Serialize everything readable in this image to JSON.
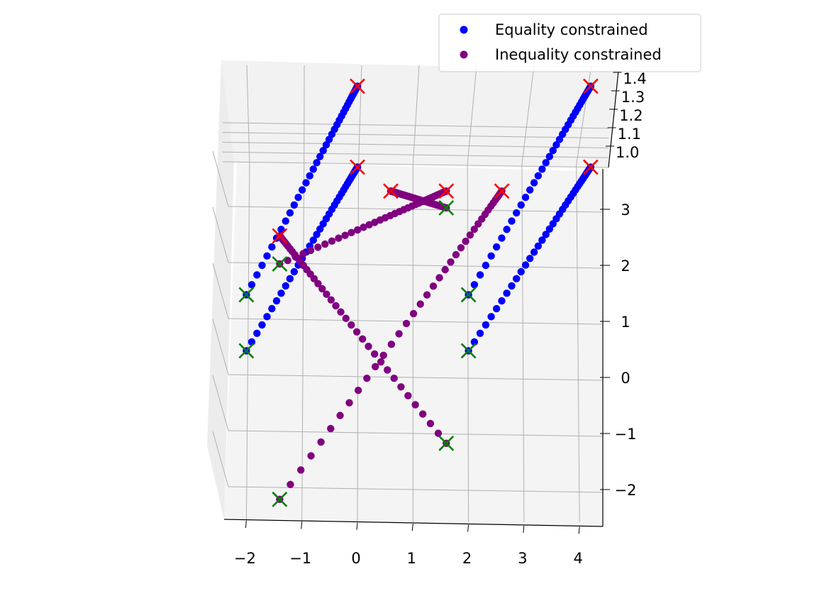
{
  "chart_data": {
    "type": "scatter",
    "projection": "3d",
    "title": "",
    "xlabel": "",
    "ylabel": "",
    "zlabel": "",
    "grid": true,
    "legend_position": "top-right",
    "xlim": [
      -2.4,
      4.4
    ],
    "ylim": [
      -2.6,
      3.6
    ],
    "zlim": [
      0.95,
      1.45
    ],
    "x_ticks": [
      -2,
      -1,
      0,
      1,
      2,
      3,
      4
    ],
    "x_tick_labels": [
      "−2",
      "−1",
      "0",
      "1",
      "2",
      "3",
      "4"
    ],
    "y_ticks": [
      -2,
      -1,
      0,
      1,
      2,
      3
    ],
    "y_tick_labels": [
      "−2",
      "−1",
      "0",
      "1",
      "2",
      "3"
    ],
    "z_ticks": [
      1.0,
      1.1,
      1.2,
      1.3,
      1.4
    ],
    "z_tick_labels": [
      "1.0",
      "1.1",
      "1.2",
      "1.3",
      "1.4"
    ],
    "series": [
      {
        "name": "Equality constrained",
        "color": "#0000ff",
        "trajectories": [
          {
            "start": [
              -2.0,
              1.45,
              1.0
            ],
            "end": [
              0.0,
              3.6,
              1.4
            ]
          },
          {
            "start": [
              -2.0,
              0.45,
              1.0
            ],
            "end": [
              0.0,
              2.55,
              1.3
            ]
          },
          {
            "start": [
              2.0,
              1.45,
              1.0
            ],
            "end": [
              4.2,
              3.6,
              1.4
            ]
          },
          {
            "start": [
              2.0,
              0.45,
              1.0
            ],
            "end": [
              4.2,
              2.55,
              1.3
            ]
          }
        ]
      },
      {
        "name": "Inequality constrained",
        "color": "#800080",
        "trajectories": [
          {
            "start": [
              -1.4,
              2.0,
              1.0
            ],
            "end": [
              1.6,
              3.3,
              1.0
            ]
          },
          {
            "start": [
              1.6,
              3.0,
              1.0
            ],
            "end": [
              0.6,
              3.3,
              1.0
            ]
          },
          {
            "start": [
              1.6,
              -1.2,
              1.0
            ],
            "end": [
              -1.4,
              2.5,
              1.0
            ]
          },
          {
            "start": [
              -1.4,
              -2.2,
              1.0
            ],
            "end": [
              2.6,
              3.3,
              1.0
            ]
          }
        ]
      }
    ],
    "markers": {
      "start_color": "#008000",
      "end_color": "#ff0000"
    }
  }
}
